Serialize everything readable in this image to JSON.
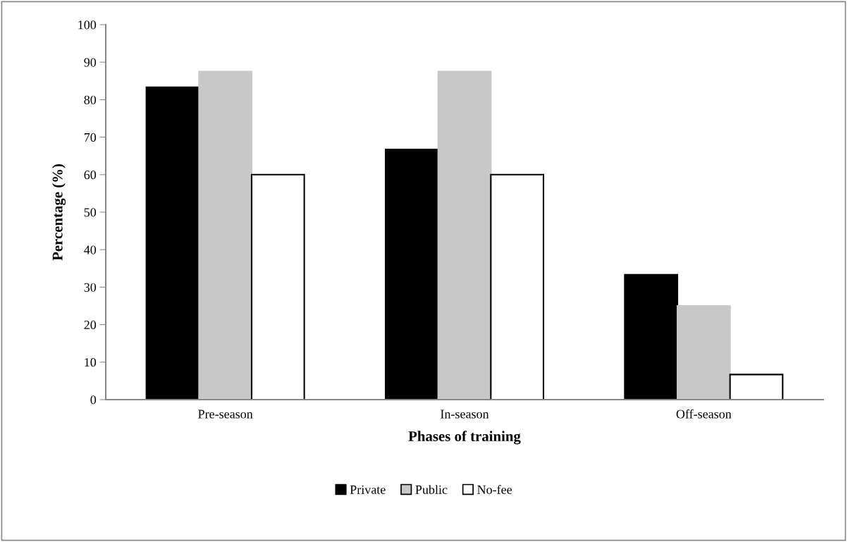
{
  "chart_data": {
    "type": "bar",
    "xlabel": "Phases of training",
    "ylabel": "Percentage (%)",
    "categories": [
      "Pre-season",
      "In-season",
      "Off-season"
    ],
    "series": [
      {
        "name": "Private",
        "color": "#000000",
        "values": [
          83.3,
          66.7,
          33.3
        ]
      },
      {
        "name": "Public",
        "color": "#c8c8c8",
        "values": [
          87.5,
          87.5,
          25
        ]
      },
      {
        "name": "No-fee",
        "color": "#ffffff",
        "values": [
          60,
          60,
          6.7
        ]
      }
    ],
    "ylim": [
      0,
      100
    ],
    "yticks": [
      0,
      10,
      20,
      30,
      40,
      50,
      60,
      70,
      80,
      90,
      100
    ],
    "grid": false,
    "legend": "bottom"
  }
}
